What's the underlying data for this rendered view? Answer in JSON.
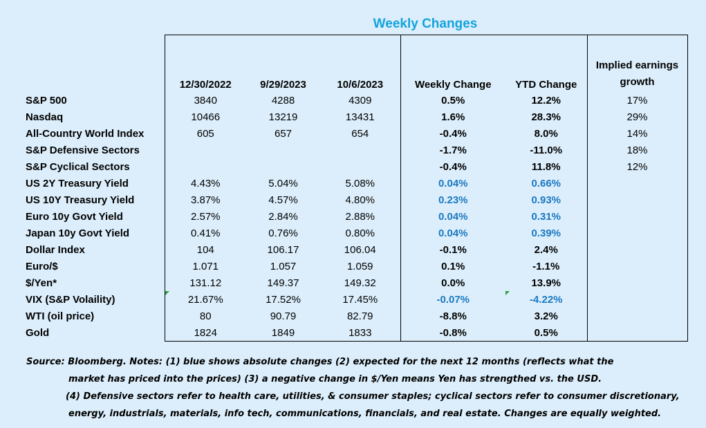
{
  "title": "Weekly Changes",
  "headers": {
    "col1": "12/30/2022",
    "col2": "9/29/2023",
    "col3": "10/6/2023",
    "col4": "Weekly Change",
    "col5": "YTD Change",
    "col6_line1": "Implied earnings",
    "col6_line2": "growth"
  },
  "rows": [
    {
      "label": "S&P 500",
      "v1": "3840",
      "v2": "4288",
      "v3": "4309",
      "weekly": "0.5%",
      "ytd": "12.2%",
      "eg": "17%",
      "blue": false
    },
    {
      "label": "Nasdaq",
      "v1": "10466",
      "v2": "13219",
      "v3": "13431",
      "weekly": "1.6%",
      "ytd": "28.3%",
      "eg": "29%",
      "blue": false
    },
    {
      "label": "All-Country World Index",
      "v1": "605",
      "v2": "657",
      "v3": "654",
      "weekly": "-0.4%",
      "ytd": "8.0%",
      "eg": "14%",
      "blue": false
    },
    {
      "label": "S&P Defensive Sectors",
      "v1": "",
      "v2": "",
      "v3": "",
      "weekly": "-1.7%",
      "ytd": "-11.0%",
      "eg": "18%",
      "blue": false
    },
    {
      "label": "S&P Cyclical Sectors",
      "v1": "",
      "v2": "",
      "v3": "",
      "weekly": "-0.4%",
      "ytd": "11.8%",
      "eg": "12%",
      "blue": false
    },
    {
      "label": "US 2Y Treasury Yield",
      "v1": "4.43%",
      "v2": "5.04%",
      "v3": "5.08%",
      "weekly": "0.04%",
      "ytd": "0.66%",
      "eg": "",
      "blue": true
    },
    {
      "label": "US 10Y Treasury Yield",
      "v1": "3.87%",
      "v2": "4.57%",
      "v3": "4.80%",
      "weekly": "0.23%",
      "ytd": "0.93%",
      "eg": "",
      "blue": true
    },
    {
      "label": "Euro 10y Govt Yield",
      "v1": "2.57%",
      "v2": "2.84%",
      "v3": "2.88%",
      "weekly": "0.04%",
      "ytd": "0.31%",
      "eg": "",
      "blue": true
    },
    {
      "label": "Japan 10y Govt Yield",
      "v1": "0.41%",
      "v2": "0.76%",
      "v3": "0.80%",
      "weekly": "0.04%",
      "ytd": "0.39%",
      "eg": "",
      "blue": true
    },
    {
      "label": "Dollar Index",
      "v1": "104",
      "v2": "106.17",
      "v3": "106.04",
      "weekly": "-0.1%",
      "ytd": "2.4%",
      "eg": "",
      "blue": false
    },
    {
      "label": "Euro/$",
      "v1": "1.071",
      "v2": "1.057",
      "v3": "1.059",
      "weekly": "0.1%",
      "ytd": "-1.1%",
      "eg": "",
      "blue": false
    },
    {
      "label": "$/Yen*",
      "v1": "131.12",
      "v2": "149.37",
      "v3": "149.32",
      "weekly": "0.0%",
      "ytd": "13.9%",
      "eg": "",
      "blue": false
    },
    {
      "label": "VIX (S&P Volaility)",
      "v1": "21.67%",
      "v2": "17.52%",
      "v3": "17.45%",
      "weekly": "-0.07%",
      "ytd": "-4.22%",
      "eg": "",
      "blue": true
    },
    {
      "label": "WTI (oil price)",
      "v1": "80",
      "v2": "90.79",
      "v3": "82.79",
      "weekly": "-8.8%",
      "ytd": "3.2%",
      "eg": "",
      "blue": false
    },
    {
      "label": "Gold",
      "v1": "1824",
      "v2": "1849",
      "v3": "1833",
      "weekly": "-0.8%",
      "ytd": "0.5%",
      "eg": "",
      "blue": false
    }
  ],
  "notes": {
    "line1": "Source: Bloomberg. Notes: (1) blue shows absolute changes (2) expected for the next 12 months (reflects what the",
    "line2": "market has priced into the prices) (3) a negative change in $/Yen means Yen has strengthed vs. the USD.",
    "line3": "(4) Defensive sectors refer to health care, utilities, & consumer staples; cyclical sectors refer to consumer discretionary,",
    "line4": "energy, industrials, materials, info tech, communications, financials, and real estate. Changes are equally weighted."
  },
  "colors": {
    "background": "#dceefb",
    "title": "#13a3dd",
    "absolute_change_blue": "#1a78c2",
    "excel_marker": "#2e9e3e"
  }
}
